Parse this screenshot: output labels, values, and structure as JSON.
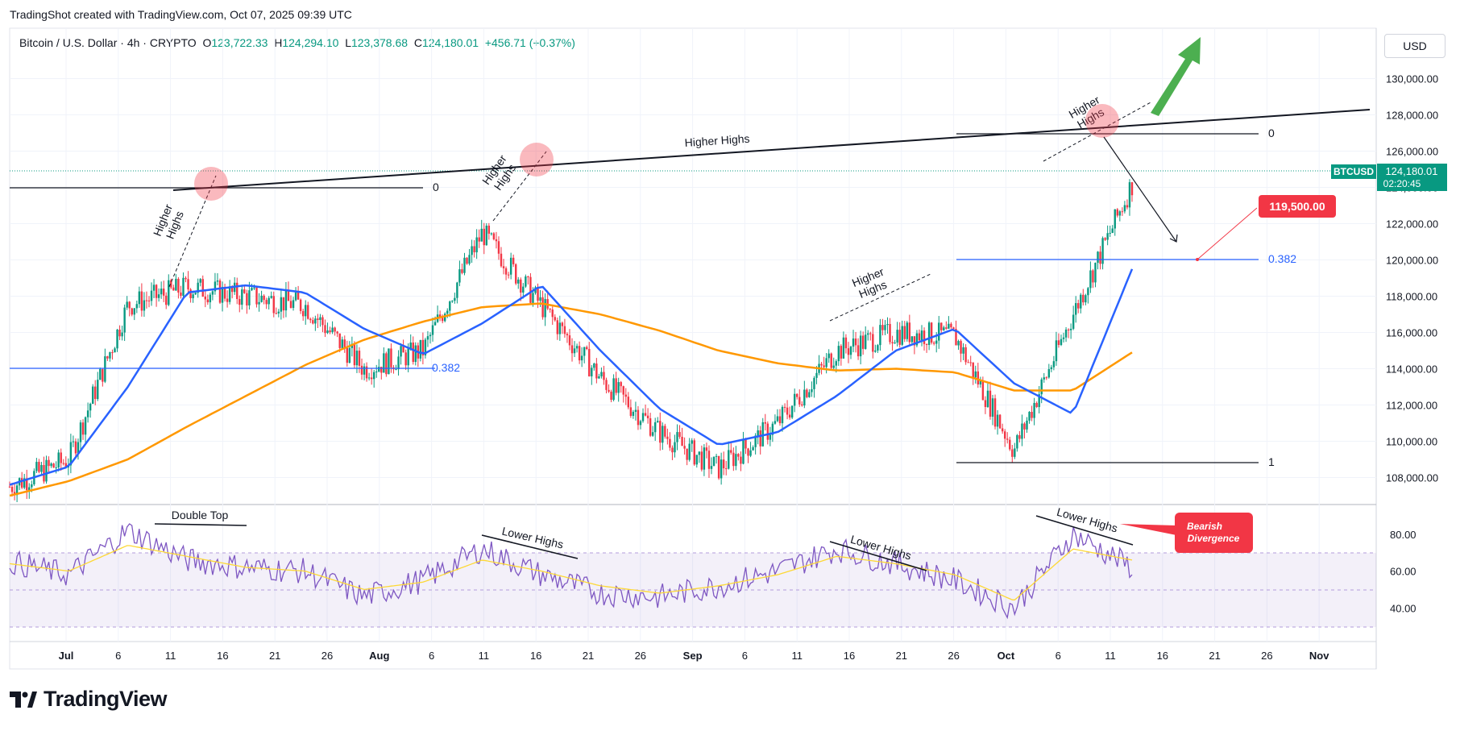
{
  "header": {
    "credit": "TradingShot created with TradingView.com, Oct 07, 2025 09:39 UTC"
  },
  "legend": {
    "symbol": "Bitcoin / U.S. Dollar · 4h · CRYPTO",
    "open_label": "O",
    "open": "123,722.33",
    "high_label": "H",
    "high": "124,294.10",
    "low_label": "L",
    "low": "123,378.68",
    "close_label": "C",
    "close": "124,180.01",
    "change": "+456.71 (+0.37%)"
  },
  "currency_button": "USD",
  "colors": {
    "up": "#089981",
    "down": "#f23645",
    "ma_fast": "#2962ff",
    "ma_slow": "#ff9800",
    "rsi": "#7e57c2",
    "rsi_ma": "#fdd835",
    "fib": "#2962ff",
    "arrow_up": "#4caf50"
  },
  "price_scale": {
    "labels": [
      "130,000.00",
      "128,000.00",
      "126,000.00",
      "124,000.00",
      "122,000.00",
      "120,000.00",
      "118,000.00",
      "116,000.00",
      "114,000.00",
      "112,000.00",
      "110,000.00",
      "108,000.00"
    ],
    "last_symbol": "BTCUSD",
    "last_price": "124,180.01",
    "countdown": "02:20:45",
    "target_price": "119,500.00"
  },
  "rsi_scale": {
    "labels": [
      "80.00",
      "60.00",
      "40.00"
    ]
  },
  "time_axis": {
    "labels": [
      "Jul",
      "6",
      "11",
      "16",
      "21",
      "26",
      "Aug",
      "6",
      "11",
      "16",
      "21",
      "26",
      "Sep",
      "6",
      "11",
      "16",
      "21",
      "26",
      "Oct",
      "6",
      "11",
      "16",
      "21",
      "26",
      "Nov"
    ]
  },
  "annotations": {
    "higher_highs": "Higher Highs",
    "higher": "Higher",
    "highs": "Highs",
    "fib_0": "0",
    "fib_0382": "0.382",
    "fib_1": "1",
    "double_top": "Double Top",
    "lower_highs": "Lower Highs",
    "bearish": "Bearish",
    "divergence": "Divergence"
  },
  "branding": {
    "logo_text": "TradingView"
  },
  "chart_data": [
    {
      "type": "line",
      "title": "Bitcoin / U.S. Dollar · 4h · CRYPTO",
      "xlabel": "",
      "ylabel": "",
      "x": [
        "Jul 01",
        "Jul 06",
        "Jul 11",
        "Jul 16",
        "Jul 21",
        "Jul 26",
        "Aug 01",
        "Aug 06",
        "Aug 11",
        "Aug 16",
        "Aug 21",
        "Aug 26",
        "Sep 01",
        "Sep 06",
        "Sep 11",
        "Sep 16",
        "Sep 21",
        "Sep 26",
        "Oct 01",
        "Oct 06"
      ],
      "ylim": [
        107000,
        131000
      ],
      "series": [
        {
          "name": "BTCUSD",
          "values": [
            107500,
            109000,
            117500,
            118500,
            118000,
            117500,
            114000,
            115000,
            121500,
            117500,
            113500,
            110500,
            108500,
            111000,
            115000,
            116000,
            115800,
            109500,
            117000,
            124180
          ]
        },
        {
          "name": "",
          "values": [
            107600,
            108600,
            113000,
            118200,
            118600,
            118200,
            116200,
            114800,
            116500,
            118600,
            115000,
            111800,
            109800,
            110500,
            112500,
            115000,
            116200,
            113200,
            111500,
            119500
          ]
        },
        {
          "name": "",
          "values": [
            107000,
            107800,
            109000,
            110800,
            112500,
            114200,
            115600,
            116600,
            117400,
            117600,
            117000,
            116100,
            115000,
            114300,
            113900,
            114000,
            113800,
            112800,
            112800,
            114900
          ]
        }
      ],
      "close_last": 124180.01,
      "target": 119500.0,
      "fib_levels": [
        {
          "label": "0",
          "value": 126200
        },
        {
          "label": "0.382",
          "value": 119500
        },
        {
          "label": "1",
          "value": 108700
        }
      ]
    },
    {
      "type": "line",
      "title": "",
      "x": [
        "Jul 01",
        "Jul 06",
        "Jul 11",
        "Jul 16",
        "Jul 21",
        "Jul 26",
        "Aug 01",
        "Aug 06",
        "Aug 11",
        "Aug 16",
        "Aug 21",
        "Aug 26",
        "Sep 01",
        "Sep 06",
        "Sep 11",
        "Sep 16",
        "Sep 21",
        "Sep 26",
        "Oct 01",
        "Oct 06"
      ],
      "ylim": [
        20,
        90
      ],
      "band": [
        30,
        70
      ],
      "midline": 50,
      "series": [
        {
          "name": "",
          "values": [
            65,
            58,
            82,
            66,
            62,
            60,
            46,
            55,
            72,
            58,
            48,
            46,
            52,
            60,
            72,
            64,
            55,
            40,
            80,
            62
          ]
        },
        {
          "name": "",
          "values": [
            64,
            60,
            74,
            68,
            62,
            60,
            50,
            54,
            66,
            60,
            52,
            48,
            52,
            58,
            68,
            64,
            58,
            44,
            72,
            66
          ]
        }
      ]
    }
  ]
}
